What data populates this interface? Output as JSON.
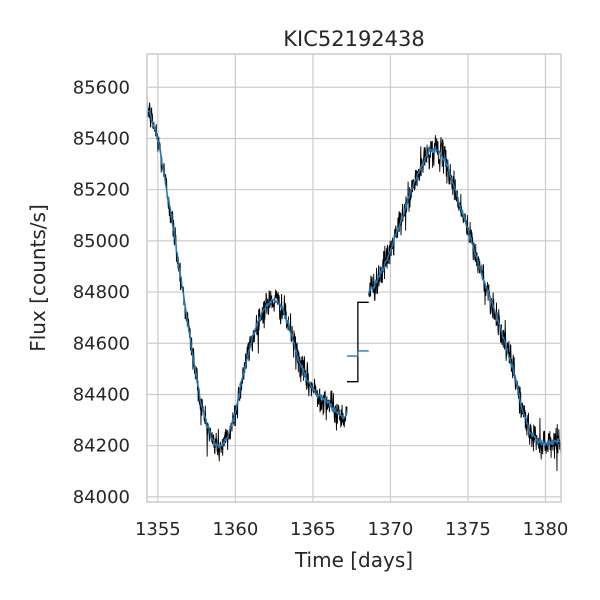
{
  "chart_data": {
    "type": "line",
    "title": "KIC52192438",
    "xlabel": "Time [days]",
    "ylabel": "Flux [counts/s]",
    "xlim": [
      1354.3,
      1381.0
    ],
    "ylim": [
      83980,
      85730
    ],
    "xticks": [
      1355,
      1360,
      1365,
      1370,
      1375,
      1380
    ],
    "yticks": [
      84000,
      84200,
      84400,
      84600,
      84800,
      85000,
      85200,
      85400,
      85600
    ],
    "xtick_labels": [
      "1355",
      "1360",
      "1365",
      "1370",
      "1375",
      "1380"
    ],
    "ytick_labels": [
      "84000",
      "84200",
      "84400",
      "84600",
      "84800",
      "85000",
      "85200",
      "85400",
      "85600"
    ],
    "grid": true,
    "series": [
      {
        "role": "raw",
        "color": "#000000",
        "noise_amplitude": 55,
        "gap": [
          [
            1367.2,
            84450
          ],
          [
            1367.9,
            84450
          ],
          [
            1367.9,
            84760
          ],
          [
            1368.6,
            84760
          ]
        ]
      },
      {
        "role": "smoothed",
        "color": "#1f77b4",
        "gap": [
          [
            1367.2,
            84550
          ],
          [
            1367.9,
            84550
          ],
          [
            1367.9,
            84570
          ],
          [
            1368.6,
            84570
          ]
        ]
      }
    ],
    "trend": [
      [
        1354.3,
        85530
      ],
      [
        1355.0,
        85400
      ],
      [
        1356.0,
        85050
      ],
      [
        1357.0,
        84650
      ],
      [
        1357.8,
        84350
      ],
      [
        1358.5,
        84220
      ],
      [
        1359.0,
        84190
      ],
      [
        1359.5,
        84230
      ],
      [
        1360.0,
        84330
      ],
      [
        1360.5,
        84480
      ],
      [
        1361.0,
        84600
      ],
      [
        1361.5,
        84690
      ],
      [
        1362.0,
        84750
      ],
      [
        1362.5,
        84770
      ],
      [
        1363.0,
        84740
      ],
      [
        1363.5,
        84660
      ],
      [
        1364.0,
        84550
      ],
      [
        1364.5,
        84470
      ],
      [
        1365.0,
        84420
      ],
      [
        1365.5,
        84390
      ],
      [
        1366.0,
        84370
      ],
      [
        1366.5,
        84330
      ],
      [
        1367.0,
        84310
      ],
      [
        1367.2,
        84340
      ],
      [
        1368.6,
        84800
      ],
      [
        1369.0,
        84830
      ],
      [
        1369.5,
        84890
      ],
      [
        1370.0,
        84960
      ],
      [
        1370.5,
        85050
      ],
      [
        1371.0,
        85130
      ],
      [
        1371.5,
        85220
      ],
      [
        1372.0,
        85290
      ],
      [
        1372.5,
        85350
      ],
      [
        1373.0,
        85360
      ],
      [
        1373.5,
        85320
      ],
      [
        1374.0,
        85230
      ],
      [
        1375.0,
        85040
      ],
      [
        1376.0,
        84850
      ],
      [
        1377.0,
        84680
      ],
      [
        1378.0,
        84480
      ],
      [
        1378.5,
        84340
      ],
      [
        1379.0,
        84250
      ],
      [
        1379.5,
        84220
      ],
      [
        1380.0,
        84210
      ],
      [
        1381.0,
        84220
      ]
    ]
  }
}
